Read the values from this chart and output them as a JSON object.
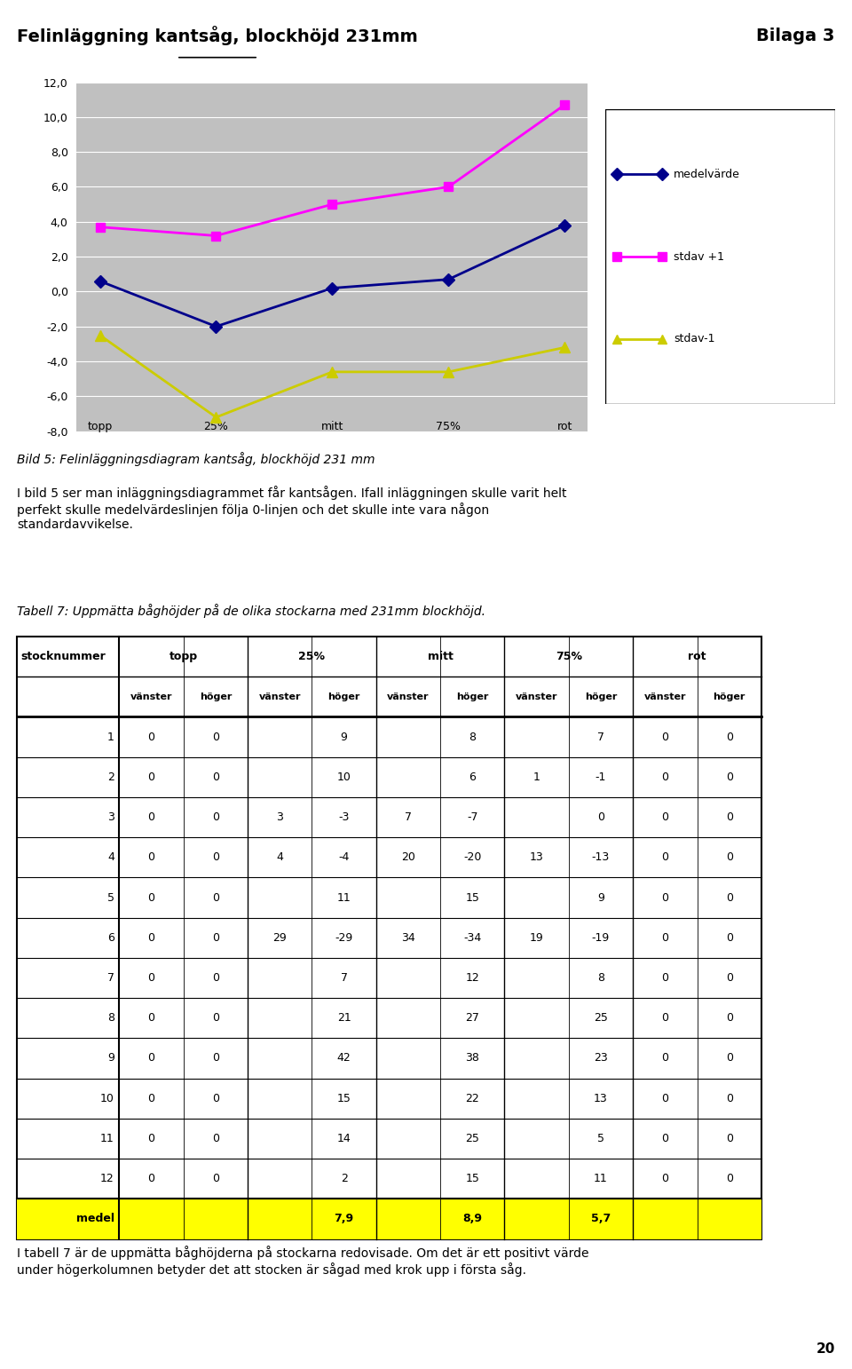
{
  "page_title_left": "Felinläggning kantsåg, blockhöjd 231mm",
  "page_title_right": "Bilaga 3",
  "page_number": "20",
  "chart": {
    "x_labels": [
      "topp",
      "25%",
      "mitt",
      "75%",
      "rot"
    ],
    "medelvarde": [
      0.6,
      -2.0,
      0.2,
      0.7,
      3.8
    ],
    "stdav_plus1": [
      3.7,
      3.2,
      5.0,
      6.0,
      10.7
    ],
    "stdav_minus1": [
      -2.5,
      -7.2,
      -4.6,
      -4.6,
      -3.2
    ],
    "ylim": [
      -8.0,
      12.0
    ],
    "yticks": [
      -8.0,
      -6.0,
      -4.0,
      -2.0,
      0.0,
      2.0,
      4.0,
      6.0,
      8.0,
      10.0,
      12.0
    ],
    "medelvarde_color": "#00008B",
    "stdav_plus1_color": "#FF00FF",
    "stdav_minus1_color": "#CCCC00",
    "background_color": "#C0C0C0",
    "legend_labels": [
      "medelvärde",
      "stdav +1",
      "stdav-1"
    ]
  },
  "caption": "Bild 5: Felinläggningsdiagram kantsåg, blockhöjd 231 mm",
  "paragraph": "I bild 5 ser man inläggningsdiagrammet får kantsågen. Ifall inläggningen skulle varit helt\nperfekt skulle medelvärdeslinjen följa 0-linjen och det skulle inte vara någon\nstandardavvikelse.",
  "table_caption": "Tabell 7: Uppmätta båghöjder på de olika stockarna med 231mm blockhöjd.",
  "table_data": [
    [
      1,
      0,
      0,
      "",
      9,
      "",
      8,
      "",
      7,
      0,
      0
    ],
    [
      2,
      0,
      0,
      "",
      10,
      "",
      6,
      1,
      -1,
      0,
      0
    ],
    [
      3,
      0,
      0,
      3,
      -3,
      7,
      -7,
      "",
      0,
      0,
      0
    ],
    [
      4,
      0,
      0,
      4,
      -4,
      20,
      -20,
      13,
      -13,
      0,
      0
    ],
    [
      5,
      0,
      0,
      "",
      11,
      "",
      15,
      "",
      9,
      0,
      0
    ],
    [
      6,
      0,
      0,
      29,
      -29,
      34,
      -34,
      19,
      -19,
      0,
      0
    ],
    [
      7,
      0,
      0,
      "",
      7,
      "",
      12,
      "",
      8,
      0,
      0
    ],
    [
      8,
      0,
      0,
      "",
      21,
      "",
      27,
      "",
      25,
      0,
      0
    ],
    [
      9,
      0,
      0,
      "",
      42,
      "",
      38,
      "",
      23,
      0,
      0
    ],
    [
      10,
      0,
      0,
      "",
      15,
      "",
      22,
      "",
      13,
      0,
      0
    ],
    [
      11,
      0,
      0,
      "",
      14,
      "",
      25,
      "",
      5,
      0,
      0
    ],
    [
      12,
      0,
      0,
      "",
      2,
      "",
      15,
      "",
      11,
      0,
      0
    ]
  ],
  "table_medel_values": [
    [
      4,
      "7,9"
    ],
    [
      6,
      "8,9"
    ],
    [
      8,
      "5,7"
    ]
  ],
  "footer_text": "I tabell 7 är de uppmätta båghöjderna på stockarna redovisade. Om det är ett positivt värde\nunder högerkolumnen betyder det att stocken är sågad med krok upp i första såg."
}
